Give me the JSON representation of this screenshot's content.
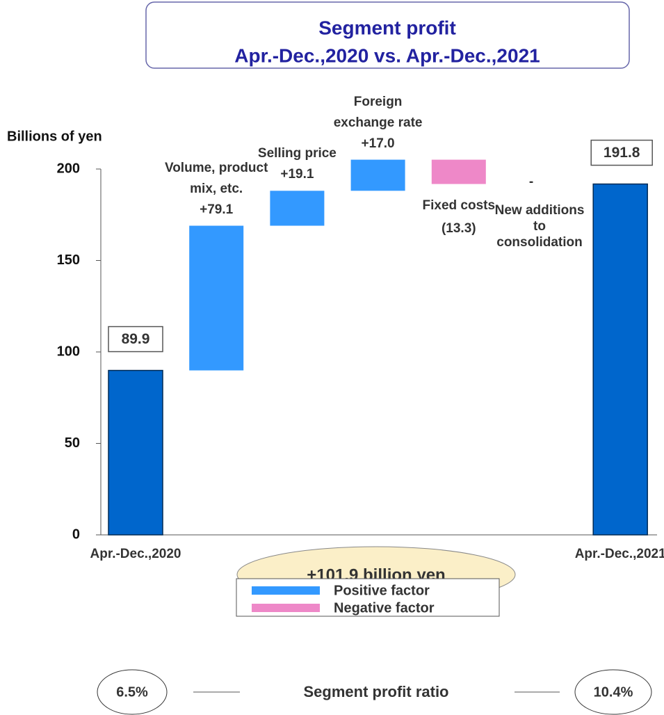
{
  "chart_data": {
    "type": "waterfall",
    "title": "Segment profit",
    "subtitle": "Apr.-Dec.,2020 vs. Apr.-Dec.,2021",
    "y_axis_label": "Billions of yen",
    "categories": [
      "Apr.-Dec.,2020",
      "Volume, product mix, etc.",
      "Selling price",
      "Foreign exchange rate",
      "Fixed costs",
      "New additions to consolidation",
      "Apr.-Dec.,2021"
    ],
    "values": [
      89.9,
      79.1,
      19.1,
      17.0,
      -13.3,
      0,
      191.8
    ],
    "value_labels": [
      "89.9",
      "+79.1",
      "+19.1",
      "+17.0",
      "(13.3)",
      "-",
      "191.8"
    ],
    "totals": [
      true,
      false,
      false,
      false,
      false,
      false,
      true
    ],
    "total_color": "#0066cc",
    "legend": [
      {
        "name": "Positive factor",
        "color": "#3399ff"
      },
      {
        "name": "Negative factor",
        "color": "#ee88c8"
      }
    ],
    "ylim": [
      0,
      200
    ],
    "yticks": [
      0,
      50,
      100,
      150,
      200
    ],
    "annotation": "+101.9 billion yen",
    "ratio_title": "Segment profit ratio",
    "ratio_labels": [
      "6.5%",
      "10.4%"
    ]
  }
}
